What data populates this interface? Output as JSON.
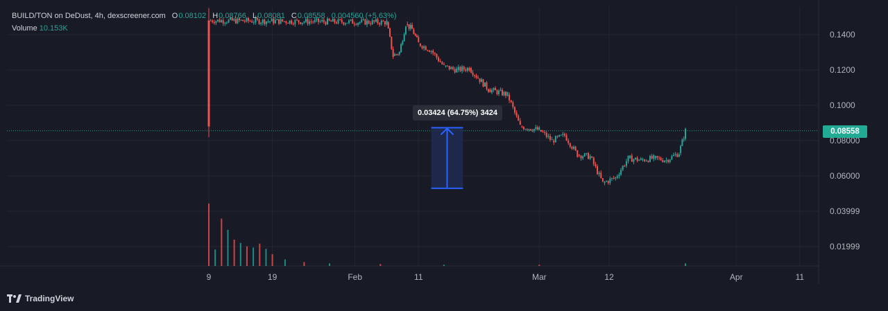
{
  "legend": {
    "symbol": "BUILD/TON on DeDust, 4h, dexscreener.com",
    "o_label": "O",
    "o_value": "0.08102",
    "h_label": "H",
    "h_value": "0.08766",
    "l_label": "L",
    "l_value": "0.08081",
    "c_label": "C",
    "c_value": "0.08558",
    "change": "0.004560 (+5.63%)",
    "volume_label": "Volume",
    "volume_value": "10.153K"
  },
  "current_price": "0.08558",
  "measure_label": "0.03424 (64.75%) 3424",
  "branding": {
    "name": "TradingView",
    "logo_icon": "tradingview-logo-icon"
  },
  "colors": {
    "background": "#181a25",
    "grid": "#232632",
    "up": "#26a69a",
    "down": "#ef5350",
    "measure_fill": "#1e2b52",
    "measure_stroke": "#2962ff",
    "price_badge": "#22ab94"
  },
  "chart_data": {
    "type": "candlestick",
    "xlabel": "",
    "ylabel": "",
    "ylim": [
      0.0116,
      0.1555
    ],
    "y_ticks": [
      "0.1400",
      "0.1200",
      "0.1000",
      "0.08000",
      "0.06000",
      "0.03999",
      "0.01999"
    ],
    "y_tick_values": [
      0.14,
      0.12,
      0.1,
      0.08,
      0.06,
      0.03999,
      0.01999
    ],
    "x_ticks": [
      "9",
      "19",
      "Feb",
      "11",
      "Mar",
      "12",
      "Apr",
      "11"
    ],
    "x_tick_dates": [
      "2024-01-09",
      "2024-01-19",
      "2024-02-01",
      "2024-02-11",
      "2024-03-01",
      "2024-03-12",
      "2024-04-01",
      "2024-04-11"
    ],
    "price_path": [
      [
        "2024-01-09",
        0.088
      ],
      [
        "2024-01-09",
        0.148
      ],
      [
        "2024-02-06",
        0.147
      ],
      [
        "2024-02-07",
        0.128
      ],
      [
        "2024-02-08",
        0.13
      ],
      [
        "2024-02-09",
        0.146
      ],
      [
        "2024-02-10",
        0.143
      ],
      [
        "2024-02-11",
        0.135
      ],
      [
        "2024-02-13",
        0.131
      ],
      [
        "2024-02-15",
        0.122
      ],
      [
        "2024-02-17",
        0.12
      ],
      [
        "2024-02-19",
        0.121
      ],
      [
        "2024-02-22",
        0.109
      ],
      [
        "2024-02-25",
        0.106
      ],
      [
        "2024-02-27",
        0.088
      ],
      [
        "2024-03-01",
        0.086
      ],
      [
        "2024-03-03",
        0.08
      ],
      [
        "2024-03-05",
        0.083
      ],
      [
        "2024-03-07",
        0.072
      ],
      [
        "2024-03-09",
        0.071
      ],
      [
        "2024-03-11",
        0.056
      ],
      [
        "2024-03-13",
        0.059
      ],
      [
        "2024-03-15",
        0.07
      ],
      [
        "2024-03-17",
        0.069
      ],
      [
        "2024-03-19",
        0.07
      ],
      [
        "2024-03-21",
        0.069
      ],
      [
        "2024-03-23",
        0.073
      ],
      [
        "2024-03-24",
        0.0856
      ]
    ],
    "volume": [
      [
        "2024-01-09",
        0.95
      ],
      [
        "2024-01-10",
        0.25
      ],
      [
        "2024-01-11",
        0.72
      ],
      [
        "2024-01-12",
        0.55
      ],
      [
        "2024-01-13",
        0.4
      ],
      [
        "2024-01-14",
        0.35
      ],
      [
        "2024-01-15",
        0.3
      ],
      [
        "2024-01-16",
        0.28
      ],
      [
        "2024-01-17",
        0.34
      ],
      [
        "2024-01-18",
        0.26
      ],
      [
        "2024-01-19",
        0.18
      ],
      [
        "2024-01-21",
        0.1
      ],
      [
        "2024-01-24",
        0.06
      ],
      [
        "2024-01-28",
        0.04
      ],
      [
        "2024-02-05",
        0.03
      ],
      [
        "2024-02-15",
        0.02
      ],
      [
        "2024-03-01",
        0.02
      ],
      [
        "2024-03-24",
        0.04
      ]
    ],
    "measure_tool": {
      "from_date": "2024-02-13",
      "to_date": "2024-02-18",
      "low": 0.053,
      "high": 0.0873,
      "change": "0.03424",
      "percent": "64.75%",
      "bars": "3424"
    },
    "current_price": 0.08558,
    "grid": true
  }
}
